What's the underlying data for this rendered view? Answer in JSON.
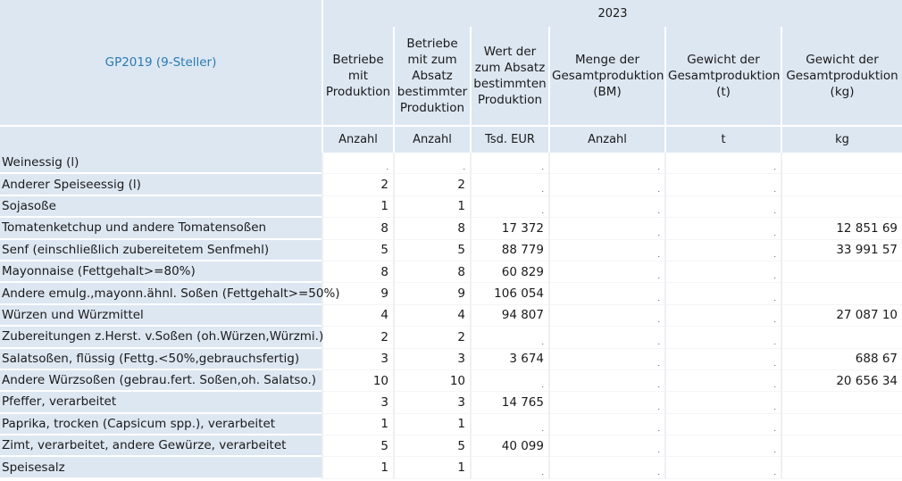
{
  "header": {
    "row_header_title": "GP2019 (9-Steller)",
    "year": "2023",
    "columns": [
      {
        "label": "Betriebe mit Produktion",
        "unit": "Anzahl"
      },
      {
        "label": "Betriebe mit zum Absatz bestimmter Produktion",
        "unit": "Anzahl"
      },
      {
        "label": "Wert der zum Absatz bestimmten Produktion",
        "unit": "Tsd. EUR"
      },
      {
        "label": "Menge der Gesamtproduktion (BM)",
        "unit": "Anzahl"
      },
      {
        "label": "Gewicht der Gesamtproduktion (t)",
        "unit": "t"
      },
      {
        "label": "Gewicht der Gesamtproduktion (kg)",
        "unit": "kg"
      }
    ]
  },
  "rows": [
    {
      "label": "Weinessig (l)",
      "cells": [
        ".",
        ".",
        ".",
        ".",
        ".",
        ""
      ]
    },
    {
      "label": "Anderer Speiseessig (l)",
      "cells": [
        "2",
        "2",
        ".",
        ".",
        ".",
        ""
      ]
    },
    {
      "label": "Sojasoße",
      "cells": [
        "1",
        "1",
        ".",
        ".",
        ".",
        ""
      ]
    },
    {
      "label": "Tomatenketchup und andere Tomatensoßen",
      "cells": [
        "8",
        "8",
        "17 372",
        ".",
        ".",
        "12 851 69"
      ]
    },
    {
      "label": "Senf (einschließlich zubereitetem Senfmehl)",
      "cells": [
        "5",
        "5",
        "88 779",
        ".",
        ".",
        "33 991 57"
      ]
    },
    {
      "label": "Mayonnaise (Fettgehalt>=80%)",
      "cells": [
        "8",
        "8",
        "60 829",
        ".",
        ".",
        ""
      ]
    },
    {
      "label": "Andere emulg.,mayonn.ähnl. Soßen (Fettgehalt>=50%)",
      "cells": [
        "9",
        "9",
        "106 054",
        ".",
        ".",
        ""
      ]
    },
    {
      "label": "Würzen und Würzmittel",
      "cells": [
        "4",
        "4",
        "94 807",
        ".",
        ".",
        "27 087 10"
      ]
    },
    {
      "label": "Zubereitungen z.Herst. v.Soßen (oh.Würzen,Würzmi.)",
      "cells": [
        "2",
        "2",
        ".",
        ".",
        ".",
        ""
      ]
    },
    {
      "label": "Salatsoßen, flüssig (Fettg.<50%,gebrauchsfertig)",
      "cells": [
        "3",
        "3",
        "3 674",
        ".",
        ".",
        "688 67"
      ]
    },
    {
      "label": "Andere Würzsoßen (gebrau.fert. Soßen,oh. Salatso.)",
      "cells": [
        "10",
        "10",
        ".",
        ".",
        ".",
        "20 656 34"
      ]
    },
    {
      "label": "Pfeffer, verarbeitet",
      "cells": [
        "3",
        "3",
        "14 765",
        ".",
        ".",
        ""
      ]
    },
    {
      "label": "Paprika, trocken (Capsicum spp.), verarbeitet",
      "cells": [
        "1",
        "1",
        ".",
        ".",
        ".",
        ""
      ]
    },
    {
      "label": "Zimt, verarbeitet, andere Gewürze, verarbeitet",
      "cells": [
        "5",
        "5",
        "40 099",
        ".",
        ".",
        ""
      ]
    },
    {
      "label": "Speisesalz",
      "cells": [
        "1",
        "1",
        ".",
        ".",
        ".",
        ""
      ]
    }
  ]
}
